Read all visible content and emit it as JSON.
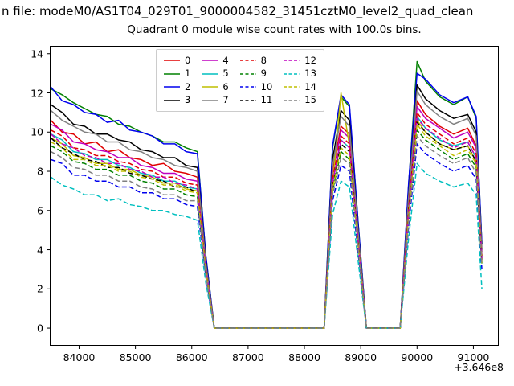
{
  "suptitle": "n file: modeM0/AS1T04_029T01_9000004582_31451cztM0_level2_quad_clean",
  "chart_data": {
    "type": "line",
    "title": "Quadrant 0 module wise count rates with 100.0s bins.",
    "xlabel": "",
    "ylabel": "",
    "x_offset_label": "+3.646e8",
    "xlim": [
      83480,
      91450
    ],
    "ylim": [
      -0.9,
      14.4
    ],
    "xticks": [
      84000,
      85000,
      86000,
      87000,
      88000,
      89000,
      90000,
      91000
    ],
    "yticks": [
      0,
      2,
      4,
      6,
      8,
      10,
      12,
      14
    ],
    "grid": false,
    "legend": {
      "position": "upper center",
      "ncol": 4
    },
    "x": [
      83500,
      83700,
      83900,
      84100,
      84300,
      84500,
      84700,
      84900,
      85100,
      85300,
      85500,
      85700,
      85900,
      86100,
      86250,
      86400,
      88350,
      88500,
      88650,
      88800,
      88950,
      89100,
      89700,
      89850,
      90000,
      90150,
      90400,
      90650,
      90900,
      91050,
      91150
    ],
    "series": [
      {
        "name": "0",
        "color": "#e00000",
        "dash": false,
        "values": [
          10.6,
          10.0,
          9.9,
          9.4,
          9.5,
          9.0,
          9.1,
          8.7,
          8.6,
          8.3,
          8.4,
          8.0,
          7.9,
          7.7,
          3.2,
          0,
          0,
          8.0,
          10.3,
          9.9,
          4.8,
          0,
          0,
          6.4,
          11.6,
          10.9,
          10.3,
          9.9,
          10.2,
          9.3,
          3.7
        ]
      },
      {
        "name": "1",
        "color": "#008000",
        "dash": false,
        "values": [
          12.2,
          11.9,
          11.5,
          11.2,
          10.9,
          10.8,
          10.4,
          10.3,
          10.0,
          9.8,
          9.5,
          9.5,
          9.2,
          9.0,
          3.7,
          0,
          0,
          9.2,
          11.8,
          11.3,
          5.5,
          0,
          0,
          7.3,
          13.6,
          12.6,
          11.8,
          11.4,
          11.8,
          10.7,
          4.3
        ]
      },
      {
        "name": "2",
        "color": "#0000ee",
        "dash": false,
        "values": [
          12.3,
          11.6,
          11.4,
          11.0,
          10.9,
          10.5,
          10.6,
          10.1,
          10.0,
          9.8,
          9.4,
          9.4,
          9.0,
          8.9,
          3.7,
          0,
          0,
          9.3,
          11.9,
          11.4,
          5.5,
          0,
          0,
          7.4,
          13.0,
          12.7,
          11.9,
          11.5,
          11.8,
          10.8,
          4.3
        ]
      },
      {
        "name": "3",
        "color": "#000000",
        "dash": false,
        "values": [
          11.4,
          11.0,
          10.4,
          10.3,
          9.9,
          9.9,
          9.6,
          9.5,
          9.1,
          9.0,
          8.7,
          8.7,
          8.3,
          8.2,
          3.4,
          0,
          0,
          8.6,
          11.1,
          10.6,
          5.1,
          0,
          0,
          6.8,
          12.4,
          11.7,
          11.1,
          10.7,
          10.9,
          10.0,
          4.0
        ]
      },
      {
        "name": "4",
        "color": "#bf00bf",
        "dash": false,
        "values": [
          10.4,
          10.1,
          9.5,
          9.4,
          9.1,
          9.0,
          8.7,
          8.7,
          8.3,
          8.2,
          7.9,
          7.9,
          7.6,
          7.5,
          3.1,
          0,
          0,
          7.8,
          10.1,
          9.7,
          4.7,
          0,
          0,
          6.2,
          11.3,
          10.7,
          10.2,
          9.7,
          10.0,
          9.2,
          3.6
        ]
      },
      {
        "name": "5",
        "color": "#00bfbf",
        "dash": false,
        "values": [
          9.9,
          9.6,
          9.0,
          8.9,
          8.6,
          8.6,
          8.3,
          8.2,
          7.9,
          7.8,
          7.5,
          7.5,
          7.2,
          7.1,
          3.0,
          0,
          0,
          7.4,
          9.6,
          9.2,
          4.5,
          0,
          0,
          5.9,
          10.8,
          10.2,
          9.6,
          9.3,
          9.5,
          8.7,
          3.5
        ]
      },
      {
        "name": "6",
        "color": "#bfbf00",
        "dash": false,
        "values": [
          9.7,
          9.4,
          8.8,
          8.7,
          8.4,
          8.4,
          8.1,
          8.1,
          7.8,
          7.7,
          7.4,
          7.4,
          7.1,
          7.0,
          2.9,
          0,
          0,
          7.3,
          12.0,
          9.3,
          4.4,
          0,
          0,
          5.8,
          10.6,
          10.0,
          9.4,
          9.1,
          9.3,
          8.5,
          3.4
        ]
      },
      {
        "name": "7",
        "color": "#808080",
        "dash": false,
        "values": [
          11.1,
          10.6,
          10.3,
          10.0,
          9.9,
          9.5,
          9.5,
          9.1,
          9.0,
          8.7,
          8.6,
          8.3,
          8.2,
          8.0,
          3.3,
          0,
          0,
          8.3,
          10.8,
          10.3,
          5.0,
          0,
          0,
          6.7,
          12.1,
          11.4,
          10.8,
          10.4,
          10.7,
          9.8,
          3.9
        ]
      },
      {
        "name": "8",
        "color": "#e00000",
        "dash": true,
        "values": [
          10.1,
          9.8,
          9.2,
          9.1,
          8.8,
          8.8,
          8.5,
          8.4,
          8.1,
          8.0,
          7.7,
          7.7,
          7.4,
          7.3,
          3.0,
          0,
          0,
          7.6,
          9.8,
          9.4,
          4.5,
          0,
          0,
          6.1,
          11.0,
          10.4,
          9.9,
          9.4,
          9.7,
          8.9,
          3.5
        ]
      },
      {
        "name": "9",
        "color": "#008000",
        "dash": true,
        "values": [
          9.3,
          9.0,
          8.5,
          8.4,
          8.1,
          8.1,
          7.8,
          7.8,
          7.5,
          7.4,
          7.1,
          7.1,
          6.8,
          6.7,
          2.8,
          0,
          0,
          7.0,
          9.0,
          8.6,
          4.2,
          0,
          0,
          5.6,
          10.1,
          9.6,
          9.1,
          8.6,
          8.9,
          8.2,
          3.3
        ]
      },
      {
        "name": "10",
        "color": "#0000ee",
        "dash": true,
        "values": [
          8.6,
          8.4,
          7.8,
          7.8,
          7.5,
          7.5,
          7.2,
          7.2,
          6.9,
          6.9,
          6.6,
          6.6,
          6.3,
          6.2,
          2.6,
          0,
          0,
          6.5,
          8.3,
          8.0,
          3.9,
          0,
          0,
          5.2,
          9.4,
          8.9,
          8.4,
          8.0,
          8.3,
          7.6,
          3.0
        ]
      },
      {
        "name": "11",
        "color": "#000000",
        "dash": true,
        "values": [
          9.7,
          9.2,
          8.9,
          8.6,
          8.5,
          8.2,
          8.2,
          7.9,
          7.8,
          7.6,
          7.5,
          7.2,
          7.2,
          6.9,
          2.9,
          0,
          0,
          7.2,
          9.4,
          9.0,
          4.4,
          0,
          0,
          5.8,
          10.5,
          10.0,
          9.4,
          9.1,
          9.3,
          8.5,
          3.4
        ]
      },
      {
        "name": "12",
        "color": "#bf00bf",
        "dash": true,
        "values": [
          9.9,
          9.4,
          9.2,
          8.8,
          8.7,
          8.4,
          8.4,
          8.1,
          8.0,
          7.7,
          7.7,
          7.4,
          7.3,
          7.1,
          3.0,
          0,
          0,
          7.4,
          9.6,
          9.2,
          4.5,
          0,
          0,
          5.9,
          10.7,
          10.2,
          9.7,
          9.2,
          9.5,
          8.7,
          3.5
        ]
      },
      {
        "name": "13",
        "color": "#00bfbf",
        "dash": true,
        "values": [
          7.7,
          7.3,
          7.1,
          6.8,
          6.8,
          6.5,
          6.6,
          6.3,
          6.2,
          6.0,
          6.0,
          5.8,
          5.7,
          5.5,
          2.3,
          0,
          0,
          5.8,
          7.5,
          7.2,
          3.5,
          0,
          0,
          4.6,
          8.4,
          7.9,
          7.5,
          7.2,
          7.4,
          6.8,
          2.0
        ]
      },
      {
        "name": "14",
        "color": "#bfbf00",
        "dash": true,
        "values": [
          9.5,
          9.2,
          8.6,
          8.6,
          8.3,
          8.3,
          8.0,
          8.0,
          7.7,
          7.6,
          7.3,
          7.3,
          7.0,
          6.9,
          2.9,
          0,
          0,
          7.1,
          9.2,
          8.8,
          4.3,
          0,
          0,
          5.7,
          10.4,
          9.8,
          9.3,
          8.8,
          9.1,
          8.4,
          3.3
        ]
      },
      {
        "name": "15",
        "color": "#808080",
        "dash": true,
        "values": [
          9.0,
          8.7,
          8.2,
          8.1,
          7.8,
          7.8,
          7.5,
          7.5,
          7.2,
          7.1,
          6.8,
          6.8,
          6.5,
          6.5,
          2.7,
          0,
          0,
          6.8,
          8.7,
          8.4,
          4.1,
          0,
          0,
          5.4,
          9.8,
          9.3,
          8.8,
          8.4,
          8.7,
          7.9,
          3.2
        ]
      }
    ]
  }
}
